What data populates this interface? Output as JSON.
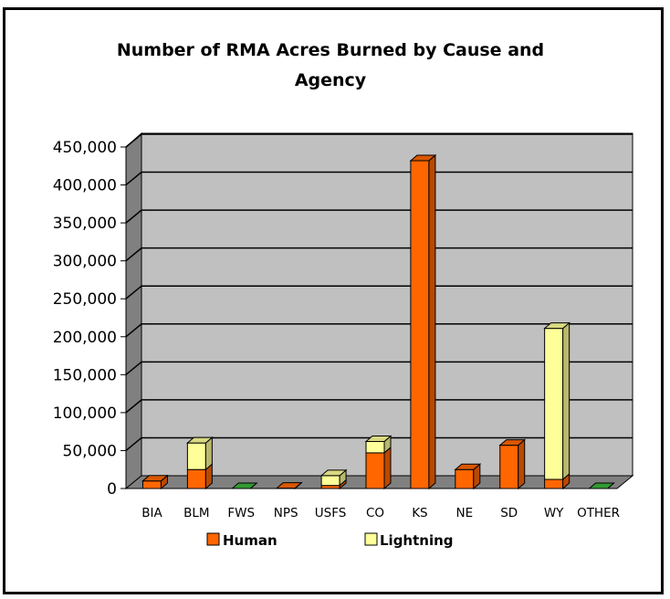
{
  "chart_data": {
    "type": "bar",
    "stacked": true,
    "three_d": true,
    "title_line1": "Number of RMA Acres Burned by Cause and",
    "title_line2": "Agency",
    "categories": [
      "BIA",
      "BLM",
      "FWS",
      "NPS",
      "USFS",
      "CO",
      "KS",
      "NE",
      "SD",
      "WY",
      "OTHER"
    ],
    "series": [
      {
        "name": "Human",
        "color": "#FF6600",
        "values": [
          10000,
          25000,
          0,
          500,
          4000,
          47000,
          432000,
          25000,
          57000,
          12000,
          0
        ]
      },
      {
        "name": "Lightning",
        "color": "#FFFF99",
        "values": [
          0,
          35000,
          0,
          0,
          13000,
          15000,
          0,
          0,
          0,
          199000,
          0
        ]
      }
    ],
    "yticks": [
      "0",
      "50,000",
      "100,000",
      "150,000",
      "200,000",
      "250,000",
      "300,000",
      "350,000",
      "400,000",
      "450,000"
    ],
    "ylim": [
      0,
      450000
    ],
    "grid": true,
    "legend_position": "bottom",
    "colors": {
      "wall": "#C0C0C0",
      "side_wall": "#808080",
      "floor": "#808080",
      "gridline": "#000000"
    }
  }
}
